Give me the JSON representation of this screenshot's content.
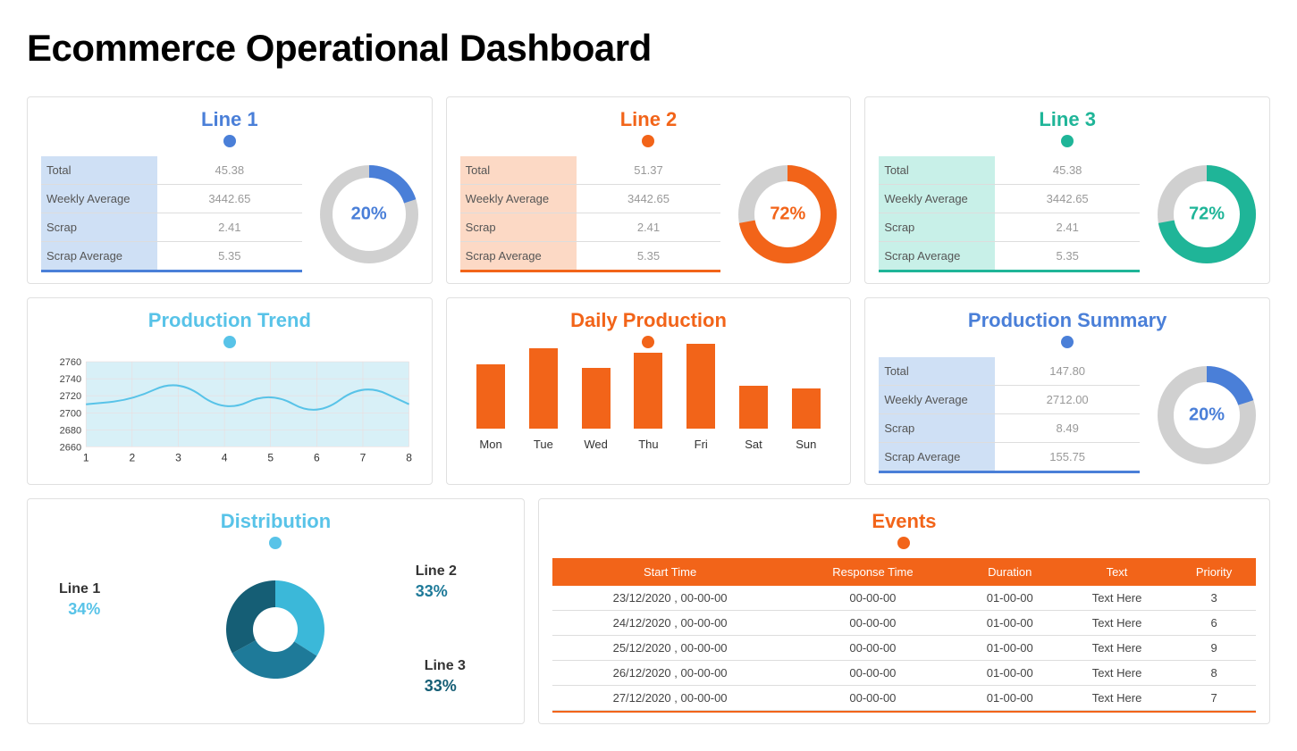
{
  "page_title": "Ecommerce Operational Dashboard",
  "colors": {
    "blue": "#4a7fd8",
    "orange": "#f26419",
    "teal": "#1fb598",
    "lightblue": "#58c3e8",
    "grey": "#d0d0d0",
    "blue_tint": "#cfe0f5",
    "orange_tint": "#fcd9c5",
    "teal_tint": "#c8f0e8",
    "summary_tint": "#cfe0f5"
  },
  "lines": [
    {
      "title": "Line 1",
      "title_color": "#4a7fd8",
      "dot_color": "#4a7fd8",
      "tint": "#cfe0f5",
      "underline": "#4a7fd8",
      "metrics": [
        {
          "label": "Total",
          "value": "45.38"
        },
        {
          "label": "Weekly Average",
          "value": "3442.65"
        },
        {
          "label": "Scrap",
          "value": "2.41"
        },
        {
          "label": "Scrap Average",
          "value": "5.35"
        }
      ],
      "donut": {
        "percent": 20,
        "label": "20%",
        "color": "#4a7fd8",
        "label_color": "#4a7fd8",
        "bg": "#d0d0d0",
        "stroke_width": 14
      }
    },
    {
      "title": "Line 2",
      "title_color": "#f26419",
      "dot_color": "#f26419",
      "tint": "#fcd9c5",
      "underline": "#f26419",
      "metrics": [
        {
          "label": "Total",
          "value": "51.37"
        },
        {
          "label": "Weekly Average",
          "value": "3442.65"
        },
        {
          "label": "Scrap",
          "value": "2.41"
        },
        {
          "label": "Scrap Average",
          "value": "5.35"
        }
      ],
      "donut": {
        "percent": 72,
        "label": "72%",
        "color": "#f26419",
        "label_color": "#f26419",
        "bg": "#d0d0d0",
        "stroke_width": 18
      }
    },
    {
      "title": "Line 3",
      "title_color": "#1fb598",
      "dot_color": "#1fb598",
      "tint": "#c8f0e8",
      "underline": "#1fb598",
      "metrics": [
        {
          "label": "Total",
          "value": "45.38"
        },
        {
          "label": "Weekly Average",
          "value": "3442.65"
        },
        {
          "label": "Scrap",
          "value": "2.41"
        },
        {
          "label": "Scrap Average",
          "value": "5.35"
        }
      ],
      "donut": {
        "percent": 72,
        "label": "72%",
        "color": "#1fb598",
        "label_color": "#1fb598",
        "bg": "#d0d0d0",
        "stroke_width": 18
      }
    }
  ],
  "production_trend": {
    "title": "Production Trend",
    "title_color": "#58c3e8",
    "dot_color": "#58c3e8",
    "yticks": [
      2760,
      2740,
      2720,
      2700,
      2680,
      2660
    ],
    "xticks": [
      1,
      2,
      3,
      4,
      5,
      6,
      7,
      8
    ],
    "ymin": 2660,
    "ymax": 2760,
    "values": [
      2710,
      2715,
      2740,
      2700,
      2725,
      2695,
      2735,
      2710
    ],
    "line_color": "#58c3e8",
    "fill_color": "#d8f0f7",
    "grid_color": "#f0d8d8"
  },
  "daily_production": {
    "title": "Daily Production",
    "title_color": "#f26419",
    "dot_color": "#f26419",
    "categories": [
      "Mon",
      "Tue",
      "Wed",
      "Thu",
      "Fri",
      "Sat",
      "Sun"
    ],
    "values": [
      72,
      90,
      68,
      85,
      95,
      48,
      45
    ],
    "max": 100,
    "bar_color": "#f26419"
  },
  "production_summary": {
    "title": "Production Summary",
    "title_color": "#4a7fd8",
    "dot_color": "#4a7fd8",
    "tint": "#cfe0f5",
    "underline": "#4a7fd8",
    "metrics": [
      {
        "label": "Total",
        "value": "147.80"
      },
      {
        "label": "Weekly Average",
        "value": "2712.00"
      },
      {
        "label": "Scrap",
        "value": "8.49"
      },
      {
        "label": "Scrap Average",
        "value": "155.75"
      }
    ],
    "donut": {
      "percent": 20,
      "label": "20%",
      "color": "#4a7fd8",
      "label_color": "#4a7fd8",
      "bg": "#d0d0d0",
      "stroke_width": 18
    }
  },
  "distribution": {
    "title": "Distribution",
    "title_color": "#58c3e8",
    "dot_color": "#58c3e8",
    "slices": [
      {
        "label": "Line 1",
        "percent": 34,
        "pct_label": "34%",
        "color": "#3bb8d9",
        "label_color": "#58c3e8"
      },
      {
        "label": "Line 2",
        "percent": 33,
        "pct_label": "33%",
        "color": "#1e7a99",
        "label_color": "#1e7a99"
      },
      {
        "label": "Line 3",
        "percent": 33,
        "pct_label": "33%",
        "color": "#155e75",
        "label_color": "#155e75"
      }
    ]
  },
  "events": {
    "title": "Events",
    "title_color": "#f26419",
    "dot_color": "#f26419",
    "header_bg": "#f26419",
    "columns": [
      "Start Time",
      "Response Time",
      "Duration",
      "Text",
      "Priority"
    ],
    "rows": [
      [
        "23/12/2020 , 00-00-00",
        "00-00-00",
        "01-00-00",
        "Text Here",
        "3"
      ],
      [
        "24/12/2020 , 00-00-00",
        "00-00-00",
        "01-00-00",
        "Text Here",
        "6"
      ],
      [
        "25/12/2020 , 00-00-00",
        "00-00-00",
        "01-00-00",
        "Text Here",
        "9"
      ],
      [
        "26/12/2020 , 00-00-00",
        "00-00-00",
        "01-00-00",
        "Text Here",
        "8"
      ],
      [
        "27/12/2020 , 00-00-00",
        "00-00-00",
        "01-00-00",
        "Text Here",
        "7"
      ]
    ],
    "footer_underline": "#f26419"
  }
}
